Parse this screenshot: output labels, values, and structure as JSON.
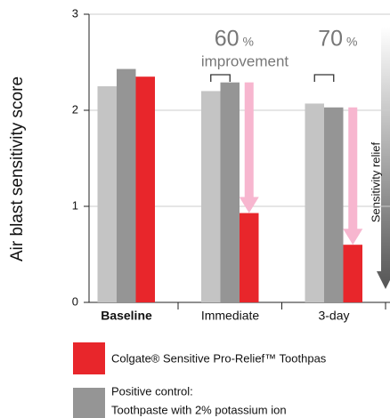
{
  "chart_data": {
    "type": "bar",
    "y_label": "Air blast sensitivity score",
    "categories": [
      "Baseline",
      "Immediate",
      "3-day"
    ],
    "series": [
      {
        "color": "#c4c4c4",
        "values": [
          2.25,
          2.2,
          2.07
        ]
      },
      {
        "name": "Positive control:",
        "description": "Toothpaste with 2% potassium ion",
        "color": "#959595",
        "values": [
          2.43,
          2.29,
          2.03
        ]
      },
      {
        "name": "Colgate® Sensitive Pro-Relief™ Toothpas",
        "color": "#e8262b",
        "values": [
          2.35,
          0.93,
          0.6
        ]
      }
    ],
    "ylim": [
      0,
      3
    ],
    "yticks": [
      0,
      1,
      2,
      3
    ],
    "grid": true,
    "annotations": [
      {
        "value": "60",
        "unit": "%"
      },
      {
        "value": "70",
        "unit": "%"
      }
    ],
    "improvement_label": "improvement",
    "relief_label": "Sensitivity relief"
  }
}
